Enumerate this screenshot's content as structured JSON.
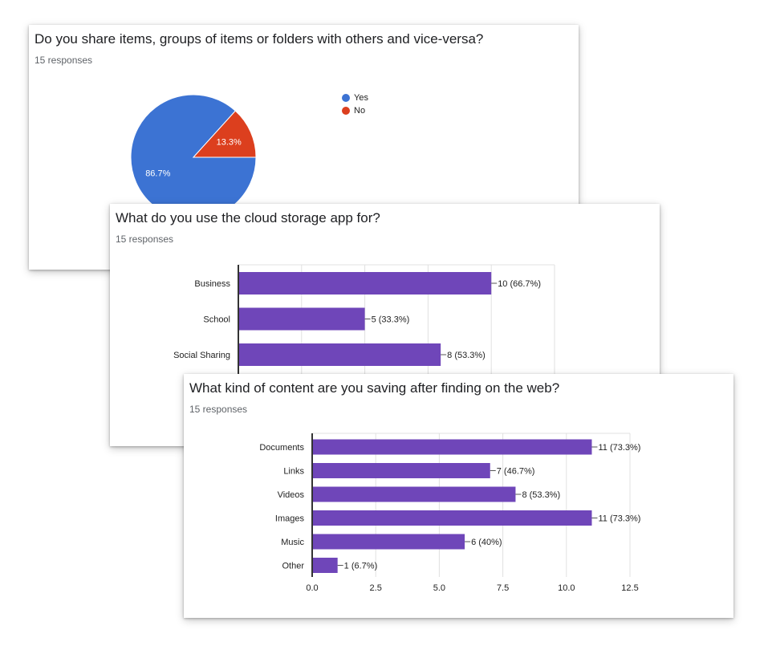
{
  "colors": {
    "yes": "#3c73d3",
    "no": "#dc3f1e",
    "bar": "#6f46b9",
    "axis": "#333333",
    "grid": "#e0e0e0"
  },
  "chart_data": [
    {
      "type": "pie",
      "title": "Do you share items, groups of items or folders with others and vice-versa?",
      "subtitle": "15 responses",
      "legend_position": "right",
      "slices": [
        {
          "name": "Yes",
          "value": 86.7,
          "label": "86.7%"
        },
        {
          "name": "No",
          "value": 13.3,
          "label": "13.3%"
        }
      ]
    },
    {
      "type": "bar",
      "orientation": "horizontal",
      "title": "What do you use the cloud storage app for?",
      "subtitle": "15 responses",
      "categories": [
        "Business",
        "School",
        "Social Sharing"
      ],
      "values": [
        10,
        5,
        8
      ],
      "labels": [
        "10 (66.7%)",
        "5 (33.3%)",
        "8 (53.3%)"
      ]
    },
    {
      "type": "bar",
      "orientation": "horizontal",
      "title": "What kind of content are you saving after finding on the web?",
      "subtitle": "15 responses",
      "categories": [
        "Documents",
        "Links",
        "Videos",
        "Images",
        "Music",
        "Other"
      ],
      "values": [
        11,
        7,
        8,
        11,
        6,
        1
      ],
      "labels": [
        "11 (73.3%)",
        "7 (46.7%)",
        "8 (53.3%)",
        "11 (73.3%)",
        "6 (40%)",
        "1 (6.7%)"
      ],
      "xlim": [
        0,
        12.5
      ],
      "ticks": [
        "0.0",
        "2.5",
        "5.0",
        "7.5",
        "10.0",
        "12.5"
      ]
    }
  ]
}
